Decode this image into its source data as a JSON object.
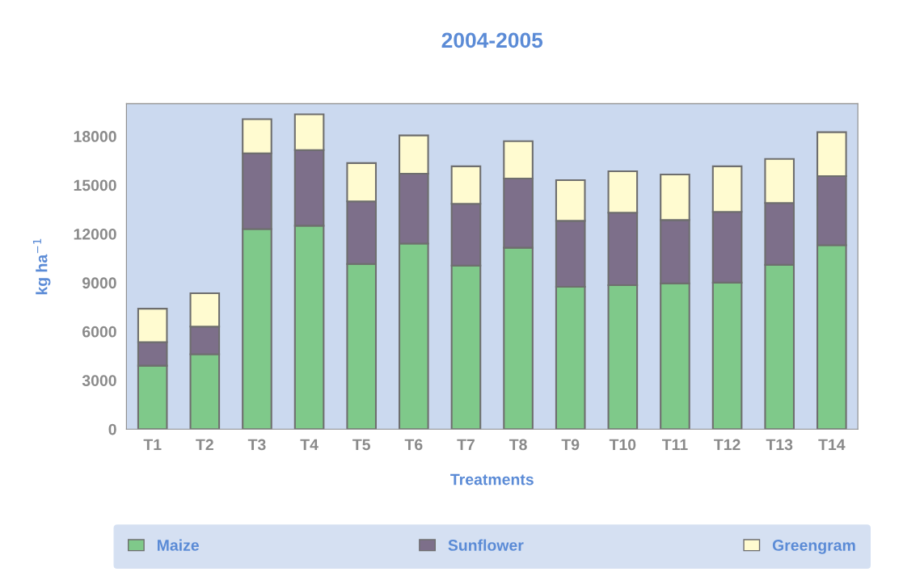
{
  "chart_data": {
    "type": "bar",
    "title": "2004-2005",
    "xlabel": "Treatments",
    "ylabel": "kg ha$^{−1}$",
    "categories": [
      "T1",
      "T2",
      "T3",
      "T4",
      "T5",
      "T6",
      "T7",
      "T8",
      "T9",
      "T10",
      "T11",
      "T12",
      "T13",
      "T14"
    ],
    "stacked": true,
    "series": [
      {
        "name": "Maize",
        "color": "#7fc98a",
        "values": [
          3900,
          4600,
          12300,
          12500,
          10150,
          11400,
          10050,
          11150,
          8750,
          8850,
          8950,
          9000,
          10100,
          11300
        ]
      },
      {
        "name": "Sunflower",
        "color": "#7d6f8a",
        "values": [
          1450,
          1700,
          4650,
          4650,
          3850,
          4300,
          3800,
          4250,
          4050,
          4450,
          3900,
          4350,
          3800,
          4250
        ]
      },
      {
        "name": "Greengram",
        "color": "#fffbd0",
        "values": [
          2050,
          2050,
          2100,
          2200,
          2350,
          2350,
          2300,
          2300,
          2500,
          2550,
          2800,
          2800,
          2700,
          2700
        ]
      }
    ],
    "ylim": [
      0,
      20000
    ],
    "yticks": [
      0,
      3000,
      6000,
      9000,
      12000,
      15000,
      18000
    ],
    "grid": false,
    "legend": "bottom"
  }
}
